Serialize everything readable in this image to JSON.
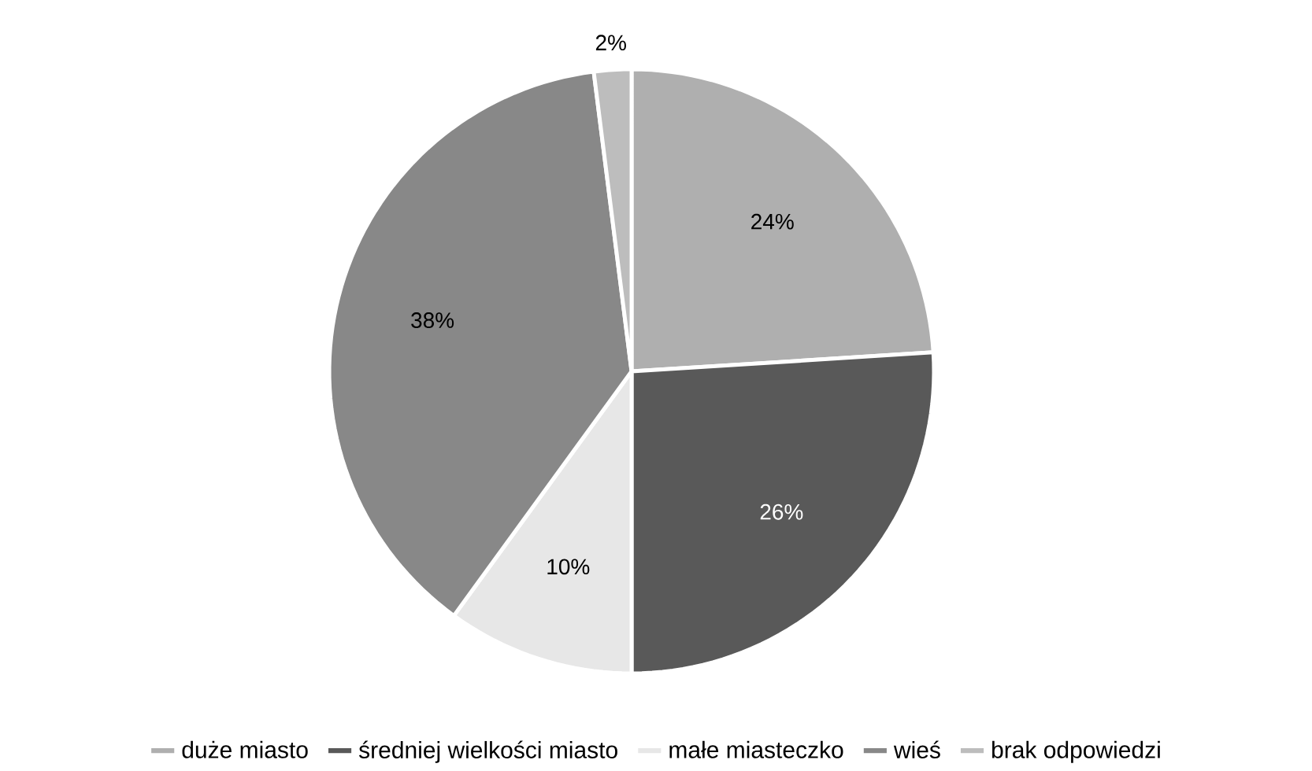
{
  "chart_data": {
    "type": "pie",
    "categories": [
      "duże miasto",
      "średniej wielkości miasto",
      "małe miasteczko",
      "wieś",
      "brak odpowiedzi"
    ],
    "values": [
      24,
      26,
      10,
      38,
      2
    ],
    "value_labels": [
      "24%",
      "26%",
      "10%",
      "38%",
      "2%"
    ],
    "colors": [
      "#afafaf",
      "#595959",
      "#e7e7e7",
      "#888888",
      "#bdbdbd"
    ],
    "legend": "bottom"
  }
}
